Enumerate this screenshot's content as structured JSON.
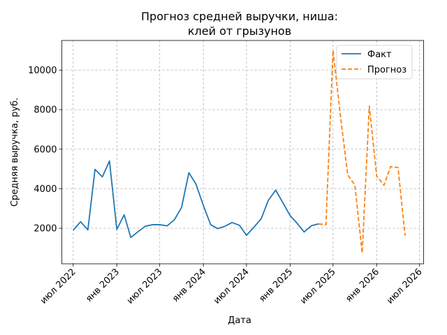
{
  "chart_data": {
    "type": "line",
    "title_lines": [
      "Прогноз средней выручки, ниша:",
      "клей от грызунов"
    ],
    "xlabel": "Дата",
    "ylabel": "Средняя выручка, руб.",
    "ylim": [
      200,
      11500
    ],
    "yticks": [
      2000,
      4000,
      6000,
      8000,
      10000
    ],
    "xticks": [
      {
        "date": "2022-07-01",
        "label": "июл 2022"
      },
      {
        "date": "2023-01-01",
        "label": "янв 2023"
      },
      {
        "date": "2023-07-01",
        "label": "июл 2023"
      },
      {
        "date": "2024-01-01",
        "label": "янв 2024"
      },
      {
        "date": "2024-07-01",
        "label": "июл 2024"
      },
      {
        "date": "2025-01-01",
        "label": "янв 2025"
      },
      {
        "date": "2025-07-01",
        "label": "июл 2025"
      },
      {
        "date": "2026-01-01",
        "label": "янв 2026"
      },
      {
        "date": "2026-07-01",
        "label": "июл 2026"
      }
    ],
    "xlim": [
      "2022-05-14",
      "2026-07-18"
    ],
    "grid": true,
    "legend_position": "top-right",
    "series": [
      {
        "name": "Факт",
        "color": "#1f77b4",
        "style": "solid",
        "points": [
          [
            "2022-07-01",
            1900
          ],
          [
            "2022-08-01",
            2330
          ],
          [
            "2022-09-01",
            1920
          ],
          [
            "2022-10-01",
            4980
          ],
          [
            "2022-11-01",
            4600
          ],
          [
            "2022-12-01",
            5400
          ],
          [
            "2023-01-01",
            1940
          ],
          [
            "2023-02-01",
            2680
          ],
          [
            "2023-03-01",
            1530
          ],
          [
            "2023-04-01",
            1830
          ],
          [
            "2023-05-01",
            2100
          ],
          [
            "2023-06-01",
            2180
          ],
          [
            "2023-07-01",
            2180
          ],
          [
            "2023-08-01",
            2120
          ],
          [
            "2023-09-01",
            2430
          ],
          [
            "2023-10-01",
            3050
          ],
          [
            "2023-11-01",
            4810
          ],
          [
            "2023-12-01",
            4230
          ],
          [
            "2024-01-01",
            3150
          ],
          [
            "2024-02-01",
            2180
          ],
          [
            "2024-03-01",
            1980
          ],
          [
            "2024-04-01",
            2100
          ],
          [
            "2024-05-01",
            2290
          ],
          [
            "2024-06-01",
            2150
          ],
          [
            "2024-07-01",
            1640
          ],
          [
            "2024-08-01",
            2050
          ],
          [
            "2024-09-01",
            2480
          ],
          [
            "2024-10-01",
            3410
          ],
          [
            "2024-11-01",
            3930
          ],
          [
            "2024-12-01",
            3300
          ],
          [
            "2025-01-01",
            2640
          ],
          [
            "2025-02-01",
            2230
          ],
          [
            "2025-03-01",
            1810
          ],
          [
            "2025-04-01",
            2130
          ],
          [
            "2025-05-01",
            2220
          ]
        ]
      },
      {
        "name": "Прогноз",
        "color": "#ff7f0e",
        "style": "dashed",
        "points": [
          [
            "2025-05-01",
            2220
          ],
          [
            "2025-06-01",
            2180
          ],
          [
            "2025-07-01",
            11000
          ],
          [
            "2025-08-01",
            7700
          ],
          [
            "2025-09-01",
            4700
          ],
          [
            "2025-10-01",
            4180
          ],
          [
            "2025-11-01",
            750
          ],
          [
            "2025-12-01",
            8180
          ],
          [
            "2026-01-01",
            4640
          ],
          [
            "2026-02-01",
            4180
          ],
          [
            "2026-03-01",
            5120
          ],
          [
            "2026-04-01",
            5070
          ],
          [
            "2026-05-01",
            1620
          ]
        ]
      }
    ]
  }
}
